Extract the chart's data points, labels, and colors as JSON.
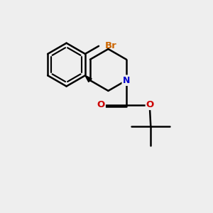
{
  "background_color": "#eeeeee",
  "bond_color": "#000000",
  "N_color": "#0000cc",
  "O_color": "#cc0000",
  "Br_color": "#cc6600",
  "bond_width": 1.8,
  "figsize": [
    3.0,
    3.0
  ],
  "dpi": 100,
  "xlim": [
    0.5,
    5.5
  ],
  "ylim": [
    0.5,
    6.5
  ]
}
